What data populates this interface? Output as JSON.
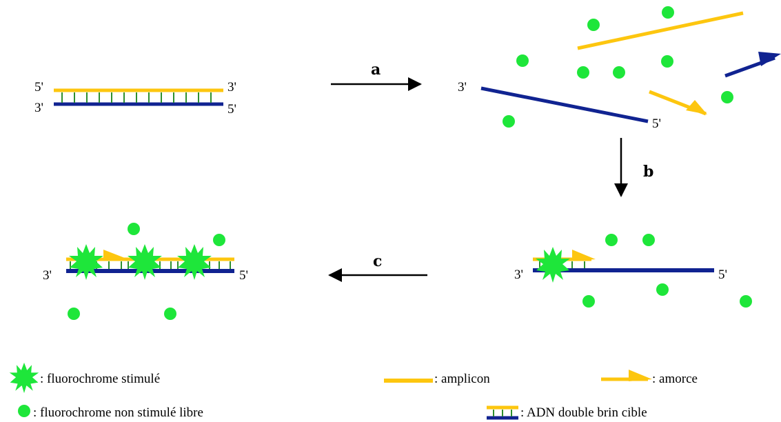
{
  "colors": {
    "amplicon": "#fdc60f",
    "target_strand": "#102391",
    "fluorochrome": "#1ee63a",
    "arrow": "#000000"
  },
  "strand_ends": {
    "five_prime": "5'",
    "three_prime": "3'"
  },
  "steps": {
    "a": "a",
    "b": "b",
    "c": "c"
  },
  "legend": {
    "stimulated": ": fluorochrome stimulé",
    "free": ": fluorochrome non stimulé libre",
    "amplicon": ": amplicon",
    "primer": ": amorce",
    "dsdna": ": ADN double brin cible"
  }
}
